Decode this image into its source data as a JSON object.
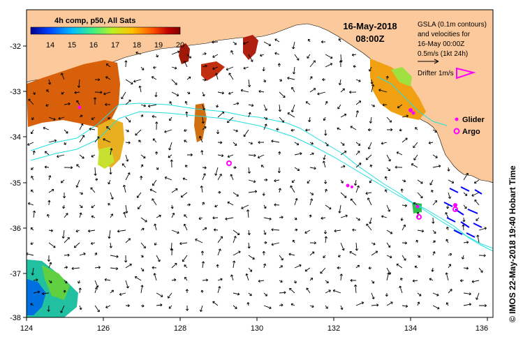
{
  "colorbar": {
    "title": "4h comp, p50, All Sats",
    "ticks": [
      "14",
      "15",
      "16",
      "17",
      "18",
      "19",
      "20"
    ],
    "colors": [
      "#00008f",
      "#0030ff",
      "#00a0ff",
      "#20e0c0",
      "#80ff40",
      "#e0f020",
      "#ffb000",
      "#ff5000",
      "#c00000",
      "#800000"
    ]
  },
  "header": {
    "date": "16-May-2018",
    "time": "08:00Z"
  },
  "legend": {
    "line1": "GSLA (0.1m contours)",
    "line2": "and velocities for",
    "line3": "16-May 00:00Z",
    "line4": "0.5m/s (1kt 24h)",
    "drifter": "Drifter 1m/s",
    "glider": "Glider",
    "argo": "Argo"
  },
  "axes": {
    "x_ticks": [
      "124",
      "126",
      "128",
      "130",
      "132",
      "134",
      "136"
    ],
    "y_ticks": [
      "-32",
      "-33",
      "-34",
      "-35",
      "-36",
      "-37",
      "-38"
    ]
  },
  "credit": "© IMOS 22-May-2018 19:40 Hobart Time",
  "colors": {
    "land": "#fbc99b",
    "contour": "#20e0e0",
    "glider": "#ff00ff",
    "argo": "#ff00ff",
    "drifter": "#0000ff"
  }
}
